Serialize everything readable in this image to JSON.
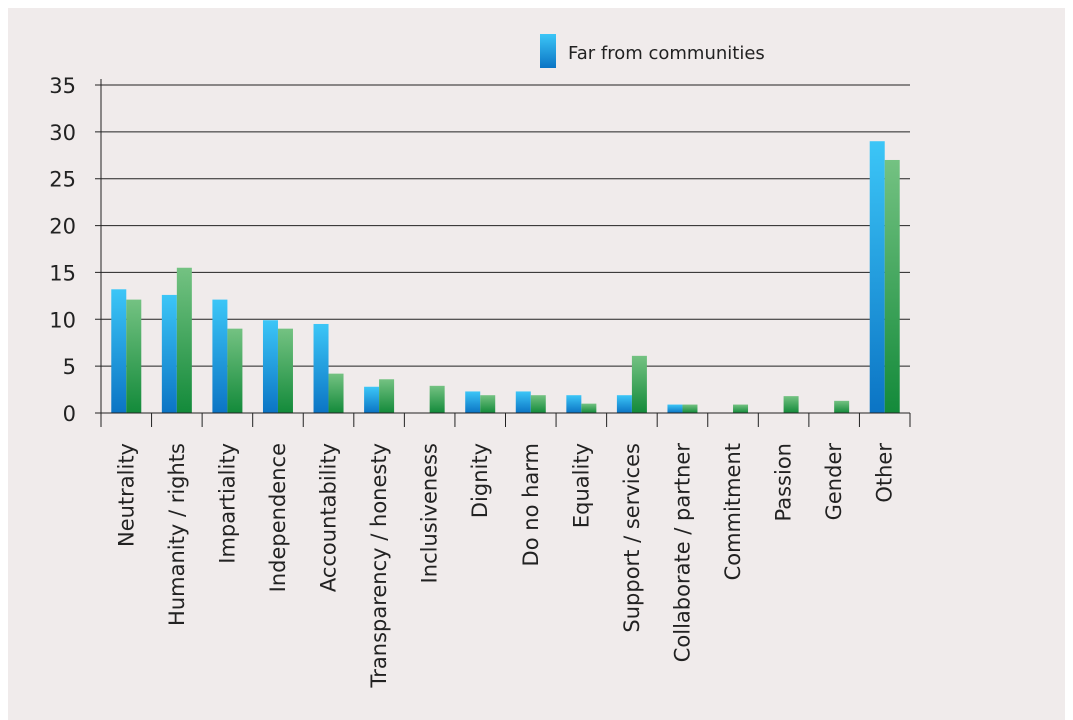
{
  "chart_data": {
    "type": "bar",
    "title": "",
    "xlabel": "",
    "ylabel": "",
    "ylim": [
      0,
      35
    ],
    "yticks": [
      0,
      5,
      10,
      15,
      20,
      25,
      30,
      35
    ],
    "grid": true,
    "legend_position": "top-right",
    "categories": [
      "Neutrality",
      "Humanity / rights",
      "Impartiality",
      "Independence",
      "Accountability",
      "Transparency / honesty",
      "Inclusiveness",
      "Dignity",
      "Do no harm",
      "Equality",
      "Support / services",
      "Collaborate / partner",
      "Commitment",
      "Passion",
      "Gender",
      "Other"
    ],
    "series": [
      {
        "name": "Far from communities",
        "color": "#1a9ee0",
        "values": [
          13.2,
          12.6,
          12.1,
          9.9,
          9.5,
          2.8,
          0,
          2.3,
          2.3,
          1.9,
          1.9,
          0.9,
          0,
          0,
          0,
          29.0
        ]
      },
      {
        "color": "#2e9c4e",
        "values": [
          12.1,
          15.5,
          9.0,
          9.0,
          4.2,
          3.6,
          2.9,
          1.9,
          1.9,
          1.0,
          6.1,
          0.9,
          0.9,
          1.8,
          1.3,
          27.0
        ]
      }
    ]
  }
}
